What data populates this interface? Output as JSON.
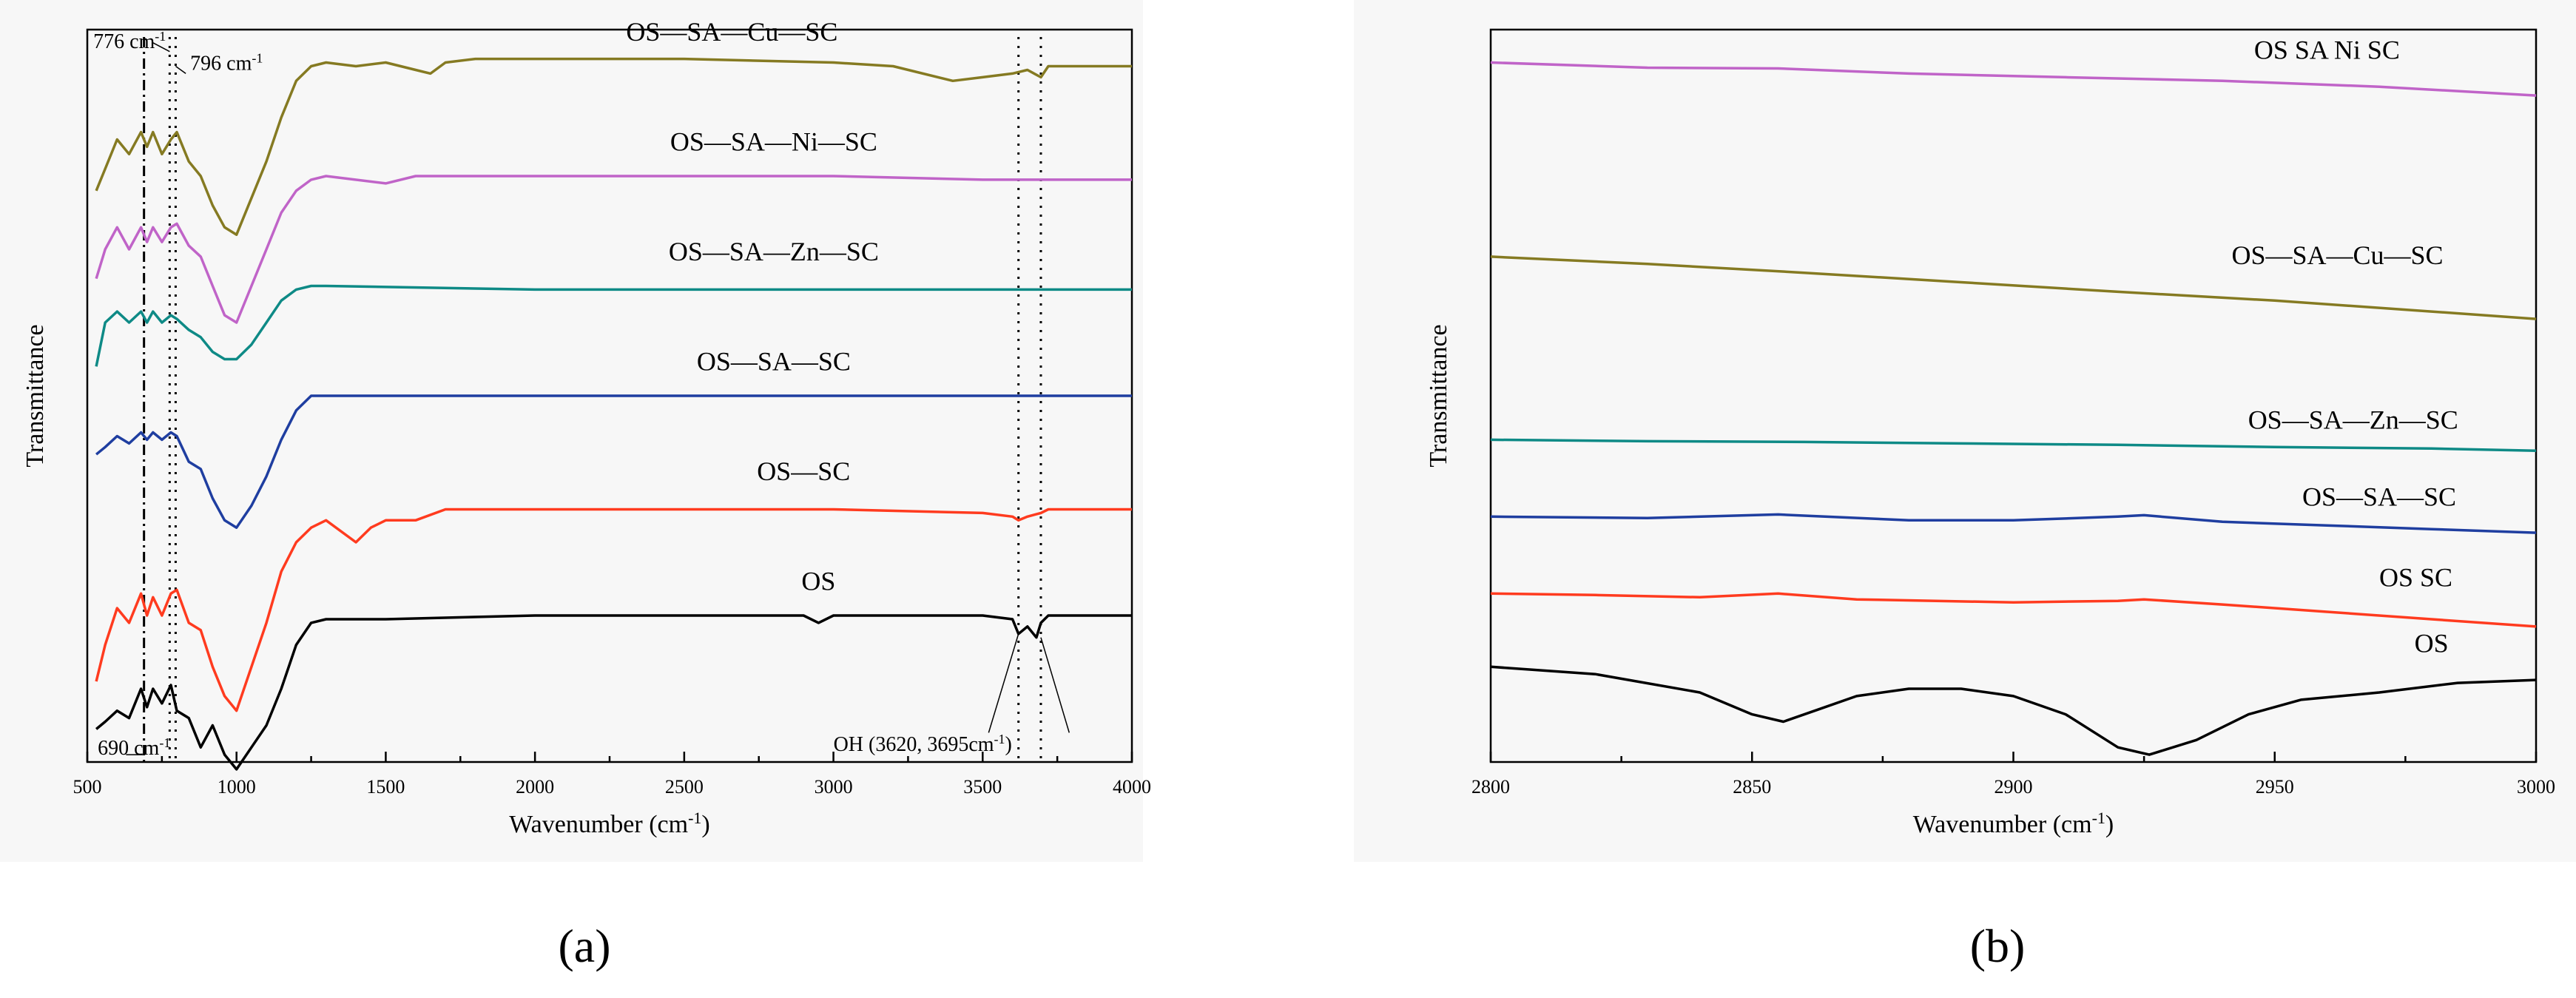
{
  "colors": {
    "OS": "#000000",
    "OS—SC": "#ff3b1f",
    "OS—SA—SC": "#1f3ea0",
    "OS—SA—Zn—SC": "#0e8a86",
    "OS—SA—Ni—SC": "#c064c8",
    "OS—SA—Cu—SC": "#857a22"
  },
  "panel_labels": {
    "a": "(a)",
    "b": "(b)"
  },
  "chart_data": [
    {
      "id": "a",
      "type": "line",
      "title": "",
      "xlabel": "Wavenumber (cm-1)",
      "ylabel": "Transmittance",
      "xlim": [
        500,
        4000
      ],
      "xticks": [
        500,
        1000,
        1500,
        2000,
        2500,
        3000,
        3500,
        4000
      ],
      "ylim": [
        0,
        10
      ],
      "order": [
        "OS",
        "OS—SC",
        "OS—SA—SC",
        "OS—SA—Zn—SC",
        "OS—SA—Ni—SC",
        "OS—SA—Cu—SC"
      ],
      "series": [
        {
          "name": "OS",
          "label": "OS",
          "x": [
            530,
            560,
            600,
            640,
            680,
            700,
            720,
            750,
            780,
            800,
            840,
            880,
            920,
            960,
            1000,
            1050,
            1100,
            1150,
            1200,
            1250,
            1300,
            1500,
            2000,
            2500,
            2900,
            2950,
            3000,
            3500,
            3600,
            3620,
            3650,
            3680,
            3695,
            3720,
            4000
          ],
          "values": [
            0.45,
            0.55,
            0.7,
            0.6,
            1.0,
            0.75,
            1.0,
            0.8,
            1.05,
            0.7,
            0.6,
            0.2,
            0.5,
            0.1,
            -0.1,
            0.2,
            0.5,
            1.0,
            1.6,
            1.9,
            1.95,
            1.95,
            2.0,
            2.0,
            2.0,
            1.9,
            2.0,
            2.0,
            1.95,
            1.75,
            1.85,
            1.7,
            1.9,
            2.0,
            2.0
          ],
          "label_x": 2950,
          "label_y": 2.35
        },
        {
          "name": "OS—SC",
          "label": "OS—SC",
          "x": [
            530,
            560,
            600,
            640,
            680,
            700,
            720,
            750,
            780,
            800,
            840,
            880,
            920,
            960,
            1000,
            1050,
            1100,
            1150,
            1200,
            1250,
            1300,
            1400,
            1450,
            1500,
            1600,
            1700,
            2000,
            2500,
            3000,
            3500,
            3600,
            3620,
            3650,
            3695,
            3720,
            4000
          ],
          "values": [
            1.1,
            1.6,
            2.1,
            1.9,
            2.3,
            2.0,
            2.25,
            2.0,
            2.3,
            2.35,
            1.9,
            1.8,
            1.3,
            0.9,
            0.7,
            1.3,
            1.9,
            2.6,
            3.0,
            3.2,
            3.3,
            3.0,
            3.2,
            3.3,
            3.3,
            3.45,
            3.45,
            3.45,
            3.45,
            3.4,
            3.35,
            3.3,
            3.35,
            3.4,
            3.45,
            3.45
          ],
          "label_x": 2900,
          "label_y": 3.85
        },
        {
          "name": "OS—SA—SC",
          "label": "OS—SA—SC",
          "x": [
            530,
            560,
            600,
            640,
            680,
            700,
            720,
            750,
            780,
            800,
            840,
            880,
            920,
            960,
            1000,
            1050,
            1100,
            1150,
            1200,
            1250,
            1300,
            2000,
            3000,
            4000
          ],
          "values": [
            4.2,
            4.3,
            4.45,
            4.35,
            4.5,
            4.4,
            4.5,
            4.4,
            4.5,
            4.45,
            4.1,
            4.0,
            3.6,
            3.3,
            3.2,
            3.5,
            3.9,
            4.4,
            4.8,
            5.0,
            5.0,
            5.0,
            5.0,
            5.0
          ],
          "label_x": 2800,
          "label_y": 5.35
        },
        {
          "name": "OS—SA—Zn—SC",
          "label": "OS—SA—Zn—SC",
          "x": [
            530,
            560,
            600,
            640,
            680,
            700,
            720,
            750,
            780,
            800,
            840,
            880,
            920,
            960,
            1000,
            1050,
            1100,
            1150,
            1200,
            1250,
            1300,
            2000,
            3000,
            4000
          ],
          "values": [
            5.4,
            6.0,
            6.15,
            6.0,
            6.15,
            6.0,
            6.15,
            6.0,
            6.1,
            6.05,
            5.9,
            5.8,
            5.6,
            5.5,
            5.5,
            5.7,
            6.0,
            6.3,
            6.45,
            6.5,
            6.5,
            6.45,
            6.45,
            6.45
          ],
          "label_x": 2800,
          "label_y": 6.85
        },
        {
          "name": "OS—SA—Ni—SC",
          "label": "OS—SA—Ni—SC",
          "x": [
            530,
            560,
            600,
            640,
            680,
            700,
            720,
            750,
            780,
            800,
            840,
            880,
            920,
            960,
            1000,
            1050,
            1100,
            1150,
            1200,
            1250,
            1300,
            1500,
            1600,
            1700,
            2000,
            2500,
            3000,
            3500,
            4000
          ],
          "values": [
            6.6,
            7.0,
            7.3,
            7.0,
            7.3,
            7.1,
            7.3,
            7.1,
            7.3,
            7.35,
            7.05,
            6.9,
            6.5,
            6.1,
            6.0,
            6.5,
            7.0,
            7.5,
            7.8,
            7.95,
            8.0,
            7.9,
            8.0,
            8.0,
            8.0,
            8.0,
            8.0,
            7.95,
            7.95
          ],
          "label_x": 2800,
          "label_y": 8.35
        },
        {
          "name": "OS—SA—Cu—SC",
          "label": "OS—SA—Cu—SC",
          "x": [
            530,
            560,
            600,
            640,
            680,
            700,
            720,
            750,
            780,
            800,
            840,
            880,
            920,
            960,
            1000,
            1050,
            1100,
            1150,
            1200,
            1250,
            1300,
            1400,
            1500,
            1600,
            1650,
            1700,
            1800,
            2000,
            2500,
            3000,
            3200,
            3400,
            3500,
            3600,
            3650,
            3695,
            3720,
            4000
          ],
          "values": [
            7.8,
            8.1,
            8.5,
            8.3,
            8.6,
            8.4,
            8.6,
            8.3,
            8.5,
            8.6,
            8.2,
            8.0,
            7.6,
            7.3,
            7.2,
            7.7,
            8.2,
            8.8,
            9.3,
            9.5,
            9.55,
            9.5,
            9.55,
            9.45,
            9.4,
            9.55,
            9.6,
            9.6,
            9.6,
            9.55,
            9.5,
            9.3,
            9.35,
            9.4,
            9.45,
            9.35,
            9.5,
            9.5
          ],
          "label_x": 2660,
          "label_y": 9.85
        }
      ],
      "annotations": [
        {
          "text": "776 cm",
          "sup": "-1",
          "x": 520,
          "y": 9.75
        },
        {
          "text": "796 cm",
          "sup": "-1",
          "x": 845,
          "y": 9.45
        },
        {
          "text": "690 cm",
          "sup": "-1",
          "x": 535,
          "y": 0.1
        },
        {
          "text": "OH (3620, 3695cm",
          "sup": "-1",
          "tail": ")",
          "x": 3000,
          "y": 0.15
        }
      ],
      "reference_lines": [
        {
          "x": 690,
          "style": "dashdot"
        },
        {
          "x": 776,
          "style": "dot"
        },
        {
          "x": 796,
          "style": "dot"
        },
        {
          "x": 3620,
          "style": "dot"
        },
        {
          "x": 3695,
          "style": "dot"
        }
      ]
    },
    {
      "id": "b",
      "type": "line",
      "title": "",
      "xlabel": "Wavenumber (cm-1)",
      "ylabel": "Transmittance",
      "xlim": [
        2800,
        3000
      ],
      "xticks": [
        2800,
        2850,
        2900,
        2950,
        3000
      ],
      "ylim": [
        0,
        10
      ],
      "order": [
        "OS",
        "OS—SC",
        "OS—SA—SC",
        "OS—SA—Zn—SC",
        "OS—SA—Cu—SC",
        "OS—SA—Ni—SC"
      ],
      "series": [
        {
          "name": "OS",
          "label": "OS",
          "x": [
            2800,
            2820,
            2840,
            2850,
            2856,
            2862,
            2870,
            2880,
            2890,
            2900,
            2910,
            2920,
            2926,
            2935,
            2945,
            2955,
            2970,
            2985,
            3000
          ],
          "values": [
            1.3,
            1.2,
            0.95,
            0.65,
            0.55,
            0.7,
            0.9,
            1.0,
            1.0,
            0.9,
            0.65,
            0.2,
            0.1,
            0.3,
            0.65,
            0.85,
            0.95,
            1.08,
            1.12
          ],
          "label_x": 2980,
          "label_y": 1.5
        },
        {
          "name": "OS—SC",
          "label": "OS SC",
          "x": [
            2800,
            2820,
            2840,
            2855,
            2870,
            2900,
            2920,
            2925,
            2940,
            2960,
            2980,
            3000
          ],
          "values": [
            2.3,
            2.28,
            2.25,
            2.3,
            2.22,
            2.18,
            2.2,
            2.22,
            2.15,
            2.05,
            1.95,
            1.85
          ],
          "label_x": 2977,
          "label_y": 2.4
        },
        {
          "name": "OS—SA—SC",
          "label": "OS—SA—SC",
          "x": [
            2800,
            2830,
            2855,
            2880,
            2900,
            2920,
            2925,
            2940,
            2960,
            2980,
            3000
          ],
          "values": [
            3.35,
            3.33,
            3.38,
            3.3,
            3.3,
            3.35,
            3.37,
            3.28,
            3.23,
            3.18,
            3.13
          ],
          "label_x": 2970,
          "label_y": 3.5
        },
        {
          "name": "OS—SA—Zn—SC",
          "label": "OS—SA—Zn—SC",
          "x": [
            2800,
            2830,
            2860,
            2890,
            2920,
            2950,
            2980,
            3000
          ],
          "values": [
            4.4,
            4.38,
            4.37,
            4.35,
            4.33,
            4.3,
            4.28,
            4.25
          ],
          "label_x": 2965,
          "label_y": 4.55
        },
        {
          "name": "OS—SA—Cu—SC",
          "label": "OS—SA—Cu—SC",
          "x": [
            2800,
            2830,
            2860,
            2890,
            2920,
            2950,
            2980,
            3000
          ],
          "values": [
            6.9,
            6.8,
            6.68,
            6.55,
            6.42,
            6.3,
            6.15,
            6.05
          ],
          "label_x": 2962,
          "label_y": 6.8
        },
        {
          "name": "OS—SA—Ni—SC",
          "label": "OS SA Ni SC",
          "x": [
            2800,
            2830,
            2855,
            2880,
            2910,
            2940,
            2970,
            3000
          ],
          "values": [
            9.55,
            9.48,
            9.47,
            9.4,
            9.35,
            9.3,
            9.22,
            9.1
          ],
          "label_x": 2960,
          "label_y": 9.6
        }
      ],
      "annotations": [],
      "reference_lines": []
    }
  ]
}
